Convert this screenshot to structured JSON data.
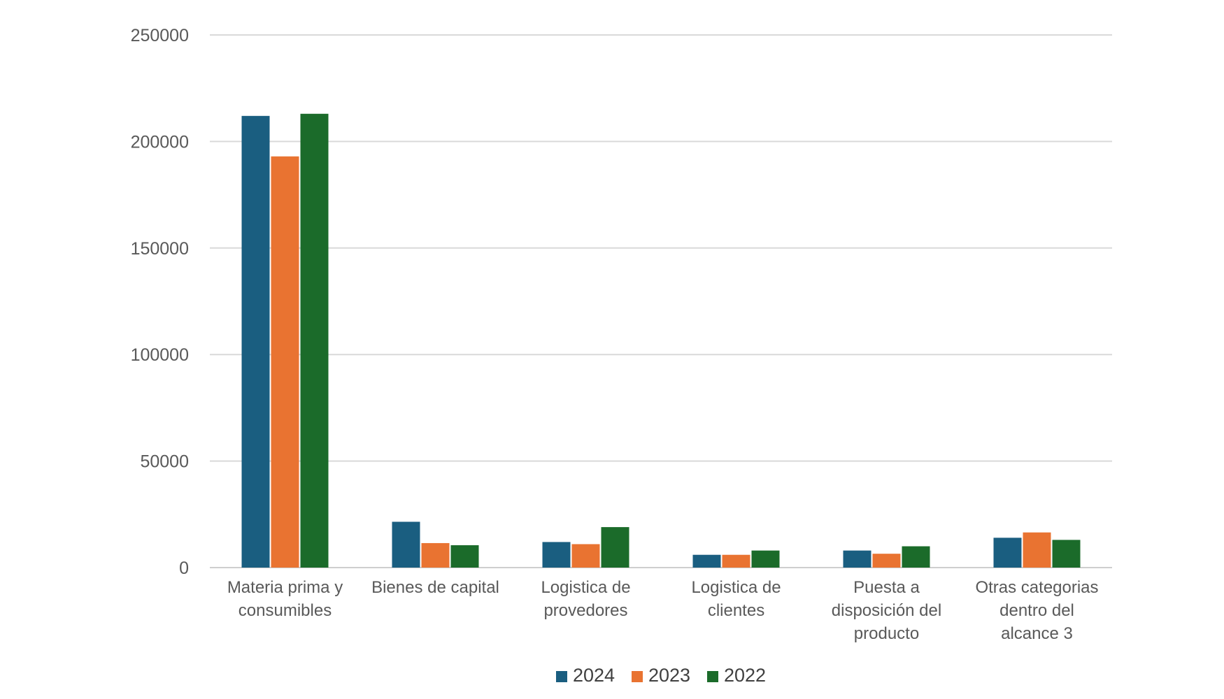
{
  "chart_data": {
    "type": "bar",
    "title": "",
    "xlabel": "",
    "ylabel": "",
    "ylim": [
      0,
      250000
    ],
    "yticks": [
      0,
      50000,
      100000,
      150000,
      200000,
      250000
    ],
    "grid": true,
    "legend_position": "bottom",
    "categories": [
      [
        "Materia prima y",
        "consumibles"
      ],
      [
        "Bienes de capital"
      ],
      [
        "Logistica de",
        "provedores"
      ],
      [
        "Logistica de",
        "clientes"
      ],
      [
        "Puesta a",
        "disposición del",
        "producto"
      ],
      [
        "Otras categorias",
        "dentro del",
        "alcance 3"
      ]
    ],
    "series": [
      {
        "name": "2024",
        "color": "#1a5e80",
        "values": [
          212000,
          21500,
          12000,
          6000,
          8000,
          14000
        ]
      },
      {
        "name": "2023",
        "color": "#e97331",
        "values": [
          193000,
          11500,
          11000,
          6000,
          6500,
          16500
        ]
      },
      {
        "name": "2022",
        "color": "#1b6b2a",
        "values": [
          213000,
          10500,
          19000,
          8000,
          10000,
          13000
        ]
      }
    ]
  }
}
